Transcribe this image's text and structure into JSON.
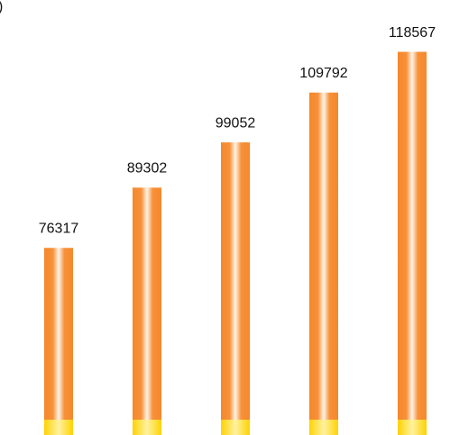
{
  "chart_data": {
    "type": "bar",
    "title": ")",
    "values": [
      76317,
      89302,
      99052,
      109792,
      118567
    ],
    "color": "#f5882a",
    "ylim": [
      36000,
      121000
    ]
  }
}
